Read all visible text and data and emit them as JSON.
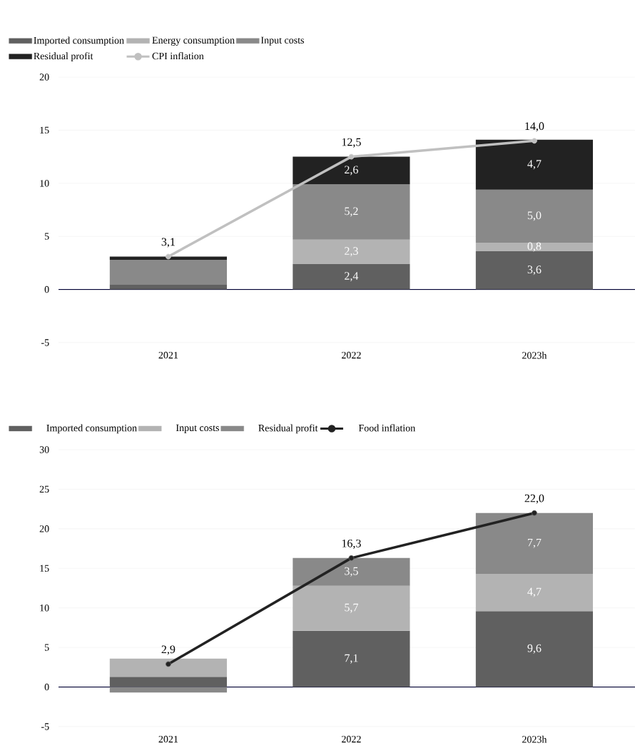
{
  "chart_data": [
    {
      "type": "bar",
      "stacked": true,
      "categories": [
        "2021",
        "2022",
        "2023h"
      ],
      "ylim": [
        -5,
        20
      ],
      "yticks": [
        -5,
        0,
        5,
        10,
        15,
        20
      ],
      "grid": "y",
      "legend": "top",
      "series": [
        {
          "name": "Imported consumption",
          "color": "#606060",
          "values": [
            0.5,
            2.4,
            3.6
          ],
          "value_labels": [
            null,
            "2,4",
            "3,6"
          ]
        },
        {
          "name": "Energy consumption",
          "color": "#b3b3b3",
          "values": [
            0,
            2.3,
            0.8
          ],
          "value_labels": [
            null,
            "2,3",
            "0,8"
          ]
        },
        {
          "name": "Input costs",
          "color": "#898989",
          "values": [
            2.3,
            5.2,
            5.0
          ],
          "value_labels": [
            null,
            "5,2",
            "5,0"
          ]
        },
        {
          "name": "Residual profit",
          "color": "#222222",
          "values": [
            0.3,
            2.6,
            4.7
          ],
          "value_labels": [
            null,
            "2,6",
            "4,7"
          ]
        },
        {
          "name": "CPI inflation",
          "type": "line",
          "marker": "circle",
          "color": "#c0c0c0",
          "values": [
            3.1,
            12.5,
            14.0
          ],
          "value_labels": [
            "3,1",
            "12,5",
            "14,0"
          ]
        }
      ]
    },
    {
      "type": "bar",
      "stacked": true,
      "categories": [
        "2021",
        "2022",
        "2023h"
      ],
      "ylim": [
        -5,
        30
      ],
      "yticks": [
        -5,
        0,
        5,
        10,
        15,
        20,
        25,
        30
      ],
      "grid": "y",
      "legend": "top",
      "series": [
        {
          "name": "Imported consumption",
          "color": "#606060",
          "values": [
            1.3,
            7.1,
            9.6
          ],
          "value_labels": [
            null,
            "7,1",
            "9,6"
          ]
        },
        {
          "name": "Input costs",
          "color": "#b3b3b3",
          "values": [
            2.3,
            5.7,
            4.7
          ],
          "value_labels": [
            null,
            "5,7",
            "4,7"
          ]
        },
        {
          "name": "Residual profit",
          "color": "#898989",
          "values": [
            -0.7,
            3.5,
            7.7
          ],
          "value_labels": [
            null,
            "3,5",
            "7,7"
          ]
        },
        {
          "name": "Food inflation",
          "type": "line",
          "marker": "circle",
          "color": "#222222",
          "values": [
            2.9,
            16.3,
            22.0
          ],
          "value_labels": [
            "2,9",
            "16,3",
            "22,0"
          ]
        }
      ]
    }
  ]
}
